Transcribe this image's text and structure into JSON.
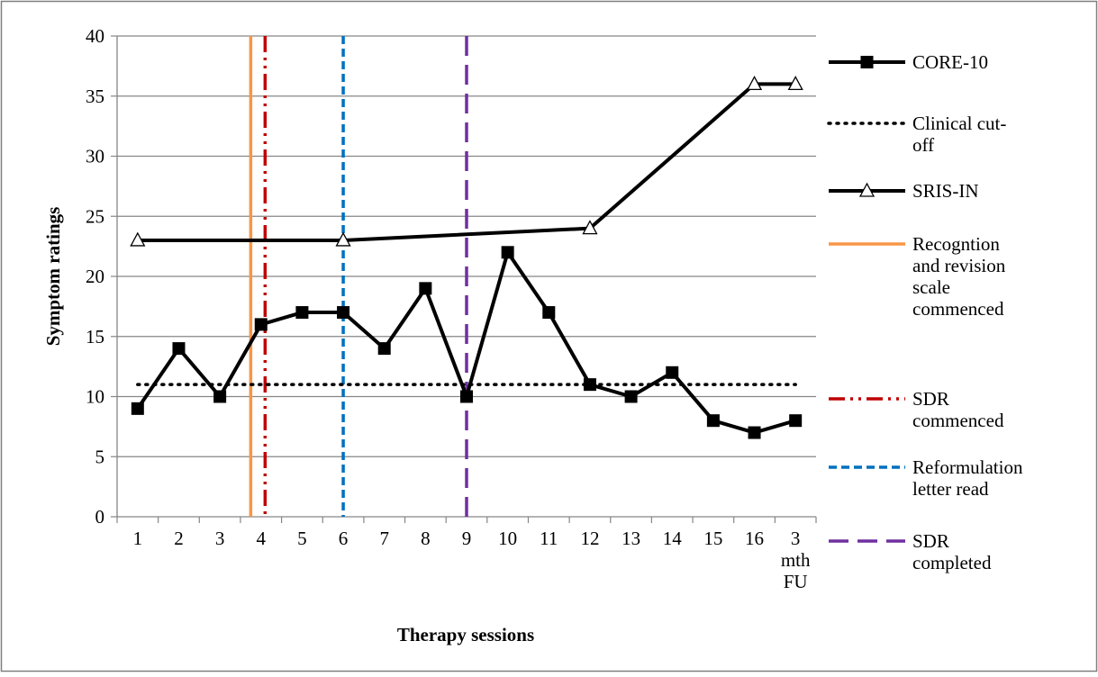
{
  "chart_data": {
    "type": "line",
    "xlabel": "Therapy sessions",
    "ylabel": "Symptom ratings",
    "ylim": [
      0,
      40
    ],
    "yticks": [
      "0",
      "5",
      "10",
      "15",
      "20",
      "25",
      "30",
      "35",
      "40"
    ],
    "grid": "horizontal",
    "legend_position": "right",
    "categories": [
      [
        "1"
      ],
      [
        "2"
      ],
      [
        "3"
      ],
      [
        "4"
      ],
      [
        "5"
      ],
      [
        "6"
      ],
      [
        "7"
      ],
      [
        "8"
      ],
      [
        "9"
      ],
      [
        "10"
      ],
      [
        "11"
      ],
      [
        "12"
      ],
      [
        "13"
      ],
      [
        "14"
      ],
      [
        "15"
      ],
      [
        "16"
      ],
      [
        "3",
        "mth",
        "FU"
      ]
    ],
    "series": [
      {
        "name": "CORE-10",
        "marker": "square",
        "color": "#000000",
        "points": [
          {
            "x": 1,
            "y": 9
          },
          {
            "x": 2,
            "y": 14
          },
          {
            "x": 3,
            "y": 10
          },
          {
            "x": 4,
            "y": 16
          },
          {
            "x": 5,
            "y": 17
          },
          {
            "x": 6,
            "y": 17
          },
          {
            "x": 7,
            "y": 14
          },
          {
            "x": 8,
            "y": 19
          },
          {
            "x": 9,
            "y": 10
          },
          {
            "x": 10,
            "y": 22
          },
          {
            "x": 11,
            "y": 17
          },
          {
            "x": 12,
            "y": 11
          },
          {
            "x": 13,
            "y": 10
          },
          {
            "x": 14,
            "y": 12
          },
          {
            "x": 15,
            "y": 8
          },
          {
            "x": 16,
            "y": 7
          },
          {
            "x": "3 mth FU",
            "y": 8
          }
        ]
      },
      {
        "name": "Clinical cut-off",
        "style": "dotted",
        "color": "#000000",
        "value": 11,
        "from": 1,
        "to": "3 mth FU"
      },
      {
        "name": "SRIS-IN",
        "marker": "triangle-open",
        "color": "#000000",
        "points": [
          {
            "x": 1,
            "y": 23
          },
          {
            "x": 6,
            "y": 23
          },
          {
            "x": 12,
            "y": 24
          },
          {
            "x": 16,
            "y": 36
          },
          {
            "x": "3 mth FU",
            "y": 36
          }
        ]
      }
    ],
    "vertical_markers": [
      {
        "name": "Recogntion and revision scale commenced",
        "legend_lines": [
          "Recogntion",
          "and revision",
          "scale",
          "commenced"
        ],
        "between": [
          3,
          4
        ],
        "offset": 0.75,
        "style": "solid",
        "color": "#F79646"
      },
      {
        "name": "SDR commenced",
        "legend_lines": [
          "SDR",
          "commenced"
        ],
        "between": [
          4,
          5
        ],
        "offset": 0.1,
        "style": "dash-dot-dot",
        "color": "#C00000"
      },
      {
        "name": "Reformulation letter read",
        "legend_lines": [
          "Reformulation",
          "letter read"
        ],
        "between": [
          6,
          7
        ],
        "offset": 0.0,
        "style": "dashed",
        "color": "#0070C0"
      },
      {
        "name": "SDR completed",
        "legend_lines": [
          "SDR",
          "completed"
        ],
        "between": [
          9,
          10
        ],
        "offset": 0.0,
        "style": "long-dash",
        "color": "#7030A0"
      }
    ],
    "legend": [
      {
        "key": "core10",
        "lines": [
          "CORE-10"
        ]
      },
      {
        "key": "cutoff",
        "lines": [
          "Clinical cut-",
          "off"
        ]
      },
      {
        "key": "sris",
        "lines": [
          "SRIS-IN"
        ]
      },
      {
        "key": "recog",
        "lines": [
          "Recogntion",
          "and revision",
          "scale",
          "commenced"
        ]
      },
      {
        "key": "sdrc",
        "lines": [
          "SDR",
          "commenced"
        ]
      },
      {
        "key": "reform",
        "lines": [
          "Reformulation",
          "letter read"
        ]
      },
      {
        "key": "sdrdone",
        "lines": [
          "SDR",
          "completed"
        ]
      }
    ]
  }
}
